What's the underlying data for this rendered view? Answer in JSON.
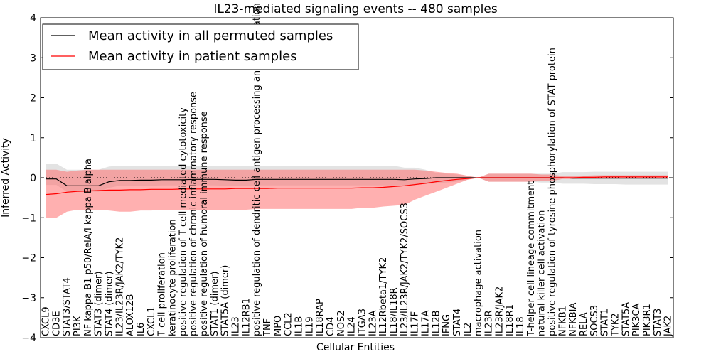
{
  "chart_data": {
    "type": "line",
    "title": "IL23-mediated signaling events -- 480 samples",
    "xlabel": "Cellular Entities",
    "ylabel": "Inferred Activity",
    "ylim": [
      -4,
      4
    ],
    "yticks": [
      -4,
      -3,
      -2,
      -1,
      0,
      1,
      2,
      3,
      4
    ],
    "grid": false,
    "legend_position": "top-left",
    "categories": [
      "CXCL9",
      "CD3E",
      "STAT3/STAT4",
      "PI3K",
      "NF kappa B1 p50/RelA/I kappa B alpha",
      "STAT3 (dimer)",
      "STAT4 (dimer)",
      "IL23/IL23R/JAK2/TYK2",
      "ALOX12B",
      "IL6",
      "CXCL1",
      "T cell proliferation",
      "keratinocyte proliferation",
      "positive regulation of T cell mediated cytotoxicity",
      "positive regulation of chronic inflammatory response",
      "positive regulation of humoral immune response",
      "STAT1 (dimer)",
      "STAT5A (dimer)",
      "IL23",
      "IL12RB1",
      "positive regulation of dendritic cell antigen processing and presentation",
      "TNF",
      "MPO",
      "CCL2",
      "IL1B",
      "IL19",
      "IL18RAP",
      "CD4",
      "NOS2",
      "IL24",
      "ITGA3",
      "IL23A",
      "IL12Rbeta1/TYK2",
      "IL18/IL18R",
      "IL23/IL23R/JAK2/TYK2/SOCS3",
      "IL17F",
      "IL17A",
      "IL12B",
      "IFNG",
      "STAT4",
      "IL2",
      "macrophage activation",
      "IL23R",
      "IL23R/JAK2",
      "IL18R1",
      "IL18",
      "T-helper cell lineage commitment",
      "natural killer cell activation",
      "positive regulation of tyrosine phosphorylation of STAT protein",
      "NFKB1",
      "NFKBIA",
      "RELA",
      "SOCS3",
      "STAT1",
      "TYK2",
      "STAT5A",
      "PIK3CA",
      "PIK3R1",
      "STAT3",
      "JAK2"
    ],
    "series": [
      {
        "name": "Mean activity in all permuted samples",
        "color": "#000000",
        "values": [
          -0.03,
          -0.03,
          -0.2,
          -0.2,
          -0.2,
          -0.2,
          -0.1,
          -0.07,
          -0.07,
          -0.06,
          -0.06,
          -0.05,
          -0.05,
          -0.05,
          -0.04,
          -0.04,
          -0.04,
          -0.05,
          -0.06,
          -0.06,
          -0.04,
          -0.04,
          -0.04,
          -0.04,
          -0.04,
          -0.04,
          -0.04,
          -0.04,
          -0.04,
          -0.04,
          -0.04,
          -0.04,
          -0.04,
          -0.04,
          -0.05,
          -0.03,
          -0.02,
          0.0,
          0.0,
          0.0,
          0.0,
          0.0,
          0.0,
          0.0,
          0.0,
          0.0,
          0.0,
          0.0,
          0.0,
          0.0,
          -0.01,
          -0.01,
          -0.01,
          -0.01,
          -0.01,
          -0.01,
          -0.01,
          -0.01,
          -0.01,
          -0.01
        ],
        "lower": [
          -0.18,
          -0.18,
          -0.35,
          -0.35,
          -0.35,
          -0.35,
          -0.25,
          -0.2,
          -0.2,
          -0.2,
          -0.2,
          -0.19,
          -0.19,
          -0.19,
          -0.19,
          -0.19,
          -0.19,
          -0.2,
          -0.2,
          -0.2,
          -0.19,
          -0.19,
          -0.19,
          -0.19,
          -0.19,
          -0.19,
          -0.19,
          -0.19,
          -0.19,
          -0.19,
          -0.19,
          -0.19,
          -0.19,
          -0.19,
          -0.19,
          -0.17,
          -0.16,
          -0.14,
          -0.12,
          -0.1,
          -0.05,
          0.0,
          -0.1,
          -0.1,
          -0.1,
          -0.1,
          -0.1,
          -0.12,
          -0.12,
          -0.15,
          -0.15,
          -0.15,
          -0.16,
          -0.16,
          -0.16,
          -0.17,
          -0.17,
          -0.17,
          -0.17,
          -0.17
        ],
        "upper": [
          0.35,
          0.35,
          0.2,
          0.2,
          0.2,
          0.2,
          0.28,
          0.3,
          0.3,
          0.3,
          0.3,
          0.3,
          0.3,
          0.3,
          0.3,
          0.3,
          0.3,
          0.3,
          0.3,
          0.3,
          0.3,
          0.3,
          0.3,
          0.3,
          0.3,
          0.3,
          0.3,
          0.3,
          0.3,
          0.3,
          0.3,
          0.3,
          0.3,
          0.3,
          0.25,
          0.25,
          0.2,
          0.12,
          0.1,
          0.08,
          0.05,
          0.0,
          0.1,
          0.1,
          0.1,
          0.1,
          0.1,
          0.1,
          0.1,
          0.14,
          0.14,
          0.14,
          0.15,
          0.15,
          0.15,
          0.15,
          0.15,
          0.15,
          0.15,
          0.15
        ]
      },
      {
        "name": "Mean activity in patient samples",
        "color": "#ff0000",
        "values": [
          -0.42,
          -0.4,
          -0.36,
          -0.34,
          -0.33,
          -0.32,
          -0.31,
          -0.31,
          -0.3,
          -0.3,
          -0.29,
          -0.29,
          -0.29,
          -0.28,
          -0.28,
          -0.28,
          -0.28,
          -0.28,
          -0.27,
          -0.27,
          -0.27,
          -0.27,
          -0.26,
          -0.26,
          -0.26,
          -0.26,
          -0.26,
          -0.26,
          -0.26,
          -0.26,
          -0.25,
          -0.25,
          -0.24,
          -0.22,
          -0.2,
          -0.17,
          -0.14,
          -0.1,
          -0.07,
          -0.04,
          -0.02,
          0.0,
          0.0,
          0.0,
          0.0,
          0.0,
          0.0,
          0.0,
          0.0,
          0.0,
          0.0,
          0.01,
          0.01,
          0.02,
          0.02,
          0.02,
          0.02,
          0.02,
          0.02,
          0.02
        ],
        "lower": [
          -1.0,
          -1.0,
          -0.85,
          -0.8,
          -0.8,
          -0.8,
          -0.82,
          -0.85,
          -0.85,
          -0.82,
          -0.82,
          -0.8,
          -0.8,
          -0.8,
          -0.8,
          -0.8,
          -0.8,
          -0.8,
          -0.8,
          -0.8,
          -0.78,
          -0.78,
          -0.78,
          -0.78,
          -0.78,
          -0.78,
          -0.78,
          -0.78,
          -0.78,
          -0.78,
          -0.75,
          -0.75,
          -0.72,
          -0.7,
          -0.68,
          -0.55,
          -0.45,
          -0.35,
          -0.25,
          -0.15,
          -0.05,
          0.0,
          -0.1,
          -0.1,
          -0.1,
          -0.1,
          -0.1,
          -0.08,
          -0.08,
          -0.03,
          -0.03,
          -0.02,
          -0.02,
          -0.02,
          -0.02,
          -0.02,
          -0.02,
          -0.02,
          -0.02,
          -0.02
        ],
        "upper": [
          0.2,
          0.2,
          0.15,
          0.18,
          0.2,
          0.2,
          0.2,
          0.2,
          0.2,
          0.2,
          0.2,
          0.2,
          0.2,
          0.2,
          0.2,
          0.2,
          0.2,
          0.2,
          0.2,
          0.2,
          0.2,
          0.2,
          0.2,
          0.2,
          0.2,
          0.2,
          0.2,
          0.2,
          0.2,
          0.2,
          0.2,
          0.2,
          0.2,
          0.2,
          0.2,
          0.2,
          0.18,
          0.15,
          0.12,
          0.1,
          0.05,
          0.0,
          0.1,
          0.1,
          0.1,
          0.1,
          0.1,
          0.08,
          0.08,
          0.04,
          0.04,
          0.05,
          0.06,
          0.06,
          0.06,
          0.06,
          0.06,
          0.06,
          0.06,
          0.06
        ]
      }
    ],
    "band_colors": {
      "permuted": "#c0c0c0",
      "patient": "#ff7070"
    }
  }
}
